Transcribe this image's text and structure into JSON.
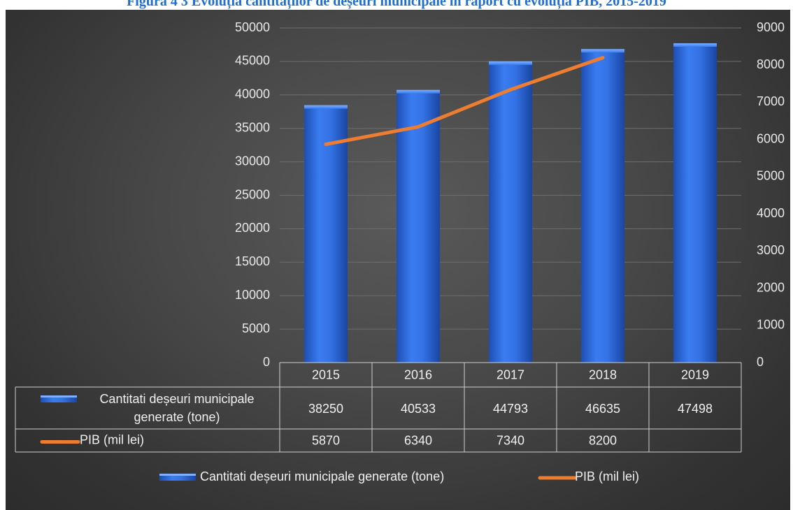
{
  "figure": {
    "caption": "Figura  4 3 Evoluția cantităților de deșeuri municipale în raport cu evoluția PIB, 2015-2019"
  },
  "colors": {
    "bar": "#2f6fe0",
    "line": "#ed7d31",
    "grid": "#6e6e6e",
    "text": "#e8e8e8"
  },
  "chart_data": {
    "type": "bar",
    "categories": [
      "2015",
      "2016",
      "2017",
      "2018",
      "2019"
    ],
    "series": [
      {
        "name": "Cantitati deșeuri municipale generate (tone)",
        "type": "bar",
        "axis": "left",
        "values": [
          38250,
          40533,
          44793,
          46635,
          47498
        ]
      },
      {
        "name": "PIB (mil lei)",
        "type": "line",
        "axis": "right",
        "values": [
          5870,
          6340,
          7340,
          8200,
          null
        ]
      }
    ],
    "y_left": {
      "min": 0,
      "max": 50000,
      "ticks": [
        0,
        5000,
        10000,
        15000,
        20000,
        25000,
        30000,
        35000,
        40000,
        45000,
        50000
      ]
    },
    "y_right": {
      "min": 0,
      "max": 9000,
      "ticks": [
        0,
        1000,
        2000,
        3000,
        4000,
        5000,
        6000,
        7000,
        8000,
        9000
      ]
    },
    "data_table": {
      "rows": [
        {
          "label_lines": [
            "Cantitati deșeuri municipale",
            "generate (tone)"
          ],
          "values": [
            "38250",
            "40533",
            "44793",
            "46635",
            "47498"
          ]
        },
        {
          "label_lines": [
            "PIB (mil lei)"
          ],
          "values": [
            "5870",
            "6340",
            "7340",
            "8200",
            ""
          ]
        }
      ]
    },
    "legend": {
      "position": "bottom",
      "items": [
        "Cantitati deșeuri municipale generate (tone)",
        "PIB (mil lei)"
      ]
    },
    "grid": true
  }
}
